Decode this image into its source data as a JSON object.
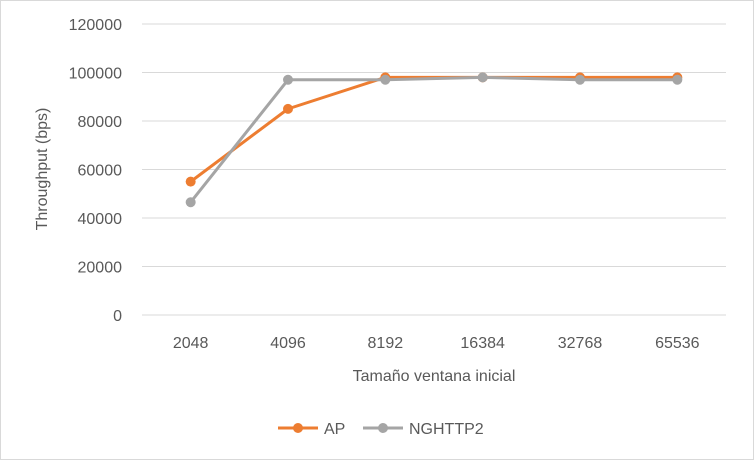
{
  "chart_data": {
    "type": "line",
    "title": "",
    "xlabel": "Tamaño ventana inicial",
    "ylabel": "Throughput (bps)",
    "categories": [
      "2048",
      "4096",
      "8192",
      "16384",
      "32768",
      "65536"
    ],
    "ylim": [
      0,
      120000
    ],
    "yticks": [
      0,
      20000,
      40000,
      60000,
      80000,
      100000,
      120000
    ],
    "grid": true,
    "legend_position": "bottom",
    "series": [
      {
        "name": "AP",
        "color": "#ED7D31",
        "values": [
          55000,
          85000,
          98000,
          98000,
          98000,
          98000
        ]
      },
      {
        "name": "NGHTTP2",
        "color": "#A5A5A5",
        "values": [
          46500,
          97000,
          97000,
          98000,
          97000,
          97000
        ]
      }
    ]
  }
}
